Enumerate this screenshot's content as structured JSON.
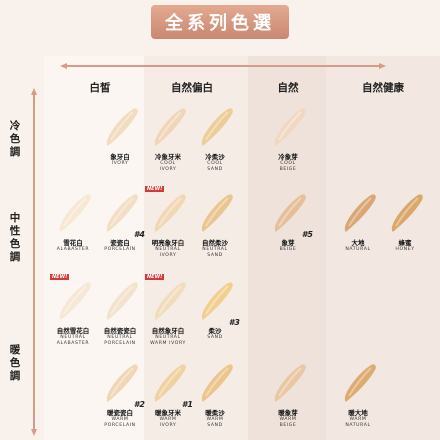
{
  "title": "全系列色選",
  "columns": [
    "白皙",
    "自然偏白",
    "自然",
    "自然健康"
  ],
  "rows": [
    "冷色調",
    "中性色調",
    "暖色調"
  ],
  "colors": {
    "title_bg": "#d79a82",
    "arrow": "#d99b86",
    "stripe_light": "#fbf6f3",
    "stripe_mid": "#f3e7e1"
  },
  "shades": [
    {
      "name": "象牙白",
      "en": "IVORY",
      "color": "#f2dcbf",
      "new": "",
      "num": ""
    },
    {
      "name": "冷象牙米",
      "en": "COOL\nIVORY",
      "color": "#efd6b8",
      "new": "",
      "num": ""
    },
    {
      "name": "冷柔沙",
      "en": "COOL\nSAND",
      "color": "#eccc98",
      "new": "",
      "num": ""
    },
    {
      "name": "冷象芽",
      "en": "COOL\nBEIGE",
      "color": "#f2d8c0",
      "new": "",
      "num": ""
    },
    {
      "name": "雪花白",
      "en": "ALABASTER",
      "color": "#f8e8d3",
      "new": "",
      "num": ""
    },
    {
      "name": "瓷瓷白",
      "en": "PORCELAIN",
      "color": "#f3dec4",
      "new": "",
      "num": "#4"
    },
    {
      "name": "明亮象牙白",
      "en": "NEUTRAL\nIVORY",
      "color": "#f1d7b4",
      "new": "NEW!",
      "num": ""
    },
    {
      "name": "自然柔沙",
      "en": "NEUTRAL\nSAND",
      "color": "#ebc590",
      "new": "",
      "num": ""
    },
    {
      "name": "象芽",
      "en": "BEIGE",
      "color": "#e6be99",
      "new": "",
      "num": "#5"
    },
    {
      "name": "大地",
      "en": "NATURAL",
      "color": "#d8a774",
      "new": "",
      "num": ""
    },
    {
      "name": "蜂蜜",
      "en": "HONEY",
      "color": "#d9a86a",
      "new": "",
      "num": ""
    },
    {
      "name": "自然雪花白",
      "en": "NEUTRAL\nALABASTER",
      "color": "#f6e7d6",
      "new": "NEW!",
      "num": ""
    },
    {
      "name": "自然瓷瓷白",
      "en": "NEUTRAL\nPORCELAIN",
      "color": "#f3e2cc",
      "new": "",
      "num": ""
    },
    {
      "name": "自然象牙白",
      "en": "NEUTRAL\nWARM IVORY",
      "color": "#f1dcbc",
      "new": "NEW!",
      "num": ""
    },
    {
      "name": "柔沙",
      "en": "SAND",
      "color": "#f2cf8f",
      "new": "",
      "num": "#3"
    },
    {
      "name": "暖瓷瓷白",
      "en": "WARM\nPORCELAIN",
      "color": "#f0d6b6",
      "new": "",
      "num": "#2"
    },
    {
      "name": "暖象牙米",
      "en": "WARM\nIVORY",
      "color": "#f0d2a2",
      "new": "",
      "num": "#1"
    },
    {
      "name": "暖柔沙",
      "en": "WARM\nSAND",
      "color": "#ebc58c",
      "new": "",
      "num": ""
    },
    {
      "name": "暖象芽",
      "en": "WARM\nBEIGE",
      "color": "#e9c6a4",
      "new": "",
      "num": ""
    },
    {
      "name": "暖大地",
      "en": "WARM\nNATURAL",
      "color": "#dcab71",
      "new": "",
      "num": ""
    }
  ]
}
